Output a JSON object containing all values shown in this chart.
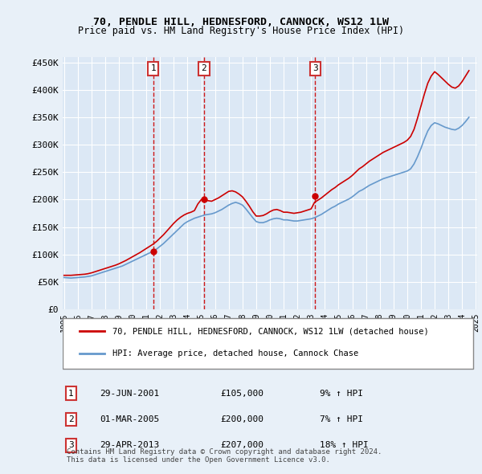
{
  "title_line1": "70, PENDLE HILL, HEDNESFORD, CANNOCK, WS12 1LW",
  "title_line2": "Price paid vs. HM Land Registry's House Price Index (HPI)",
  "xlabel": "",
  "ylabel": "",
  "ylim": [
    0,
    460000
  ],
  "yticks": [
    0,
    50000,
    100000,
    150000,
    200000,
    250000,
    300000,
    350000,
    400000,
    450000
  ],
  "ytick_labels": [
    "£0",
    "£50K",
    "£100K",
    "£150K",
    "£200K",
    "£250K",
    "£300K",
    "£350K",
    "£400K",
    "£450K"
  ],
  "x_start_year": 1995,
  "x_end_year": 2025,
  "xticks": [
    1995,
    1996,
    1997,
    1998,
    1999,
    2000,
    2001,
    2002,
    2003,
    2004,
    2005,
    2006,
    2007,
    2008,
    2009,
    2010,
    2011,
    2012,
    2013,
    2014,
    2015,
    2016,
    2017,
    2018,
    2019,
    2020,
    2021,
    2022,
    2023,
    2024,
    2025
  ],
  "background_color": "#e8f0f8",
  "plot_bg_color": "#dce8f5",
  "grid_color": "#ffffff",
  "red_line_color": "#cc0000",
  "blue_line_color": "#6699cc",
  "purchase_marker_color": "#cc0000",
  "vline_color": "#cc0000",
  "legend_box_color": "#cc3333",
  "legend1_label": "70, PENDLE HILL, HEDNESFORD, CANNOCK, WS12 1LW (detached house)",
  "legend2_label": "HPI: Average price, detached house, Cannock Chase",
  "purchases": [
    {
      "num": 1,
      "date": "29-JUN-2001",
      "price": 105000,
      "pct": "9%",
      "x": 2001.5
    },
    {
      "num": 2,
      "date": "01-MAR-2005",
      "price": 200000,
      "pct": "7%",
      "x": 2005.2
    },
    {
      "num": 3,
      "date": "29-APR-2013",
      "price": 207000,
      "pct": "18%",
      "x": 2013.3
    }
  ],
  "footer_line1": "Contains HM Land Registry data © Crown copyright and database right 2024.",
  "footer_line2": "This data is licensed under the Open Government Licence v3.0.",
  "hpi_data_x": [
    1995.0,
    1995.25,
    1995.5,
    1995.75,
    1996.0,
    1996.25,
    1996.5,
    1996.75,
    1997.0,
    1997.25,
    1997.5,
    1997.75,
    1998.0,
    1998.25,
    1998.5,
    1998.75,
    1999.0,
    1999.25,
    1999.5,
    1999.75,
    2000.0,
    2000.25,
    2000.5,
    2000.75,
    2001.0,
    2001.25,
    2001.5,
    2001.75,
    2002.0,
    2002.25,
    2002.5,
    2002.75,
    2003.0,
    2003.25,
    2003.5,
    2003.75,
    2004.0,
    2004.25,
    2004.5,
    2004.75,
    2005.0,
    2005.25,
    2005.5,
    2005.75,
    2006.0,
    2006.25,
    2006.5,
    2006.75,
    2007.0,
    2007.25,
    2007.5,
    2007.75,
    2008.0,
    2008.25,
    2008.5,
    2008.75,
    2009.0,
    2009.25,
    2009.5,
    2009.75,
    2010.0,
    2010.25,
    2010.5,
    2010.75,
    2011.0,
    2011.25,
    2011.5,
    2011.75,
    2012.0,
    2012.25,
    2012.5,
    2012.75,
    2013.0,
    2013.25,
    2013.5,
    2013.75,
    2014.0,
    2014.25,
    2014.5,
    2014.75,
    2015.0,
    2015.25,
    2015.5,
    2015.75,
    2016.0,
    2016.25,
    2016.5,
    2016.75,
    2017.0,
    2017.25,
    2017.5,
    2017.75,
    2018.0,
    2018.25,
    2018.5,
    2018.75,
    2019.0,
    2019.25,
    2019.5,
    2019.75,
    2020.0,
    2020.25,
    2020.5,
    2020.75,
    2021.0,
    2021.25,
    2021.5,
    2021.75,
    2022.0,
    2022.25,
    2022.5,
    2022.75,
    2023.0,
    2023.25,
    2023.5,
    2023.75,
    2024.0,
    2024.25,
    2024.5
  ],
  "hpi_data_y": [
    58000,
    57500,
    57000,
    57500,
    58000,
    58500,
    59000,
    60000,
    61000,
    63000,
    65000,
    67000,
    69000,
    71000,
    73000,
    75000,
    77000,
    79000,
    82000,
    85000,
    88000,
    91000,
    94000,
    97000,
    100000,
    103000,
    106000,
    110000,
    115000,
    120000,
    126000,
    132000,
    138000,
    144000,
    150000,
    156000,
    160000,
    163000,
    166000,
    168000,
    170000,
    172000,
    173000,
    174000,
    176000,
    179000,
    182000,
    186000,
    190000,
    193000,
    195000,
    193000,
    190000,
    183000,
    175000,
    167000,
    160000,
    158000,
    158000,
    160000,
    163000,
    165000,
    166000,
    165000,
    163000,
    163000,
    162000,
    161000,
    161000,
    162000,
    163000,
    164000,
    165000,
    167000,
    170000,
    173000,
    177000,
    181000,
    185000,
    188000,
    192000,
    195000,
    198000,
    201000,
    205000,
    210000,
    215000,
    218000,
    222000,
    226000,
    229000,
    232000,
    235000,
    238000,
    240000,
    242000,
    244000,
    246000,
    248000,
    250000,
    252000,
    256000,
    265000,
    278000,
    293000,
    310000,
    325000,
    335000,
    340000,
    338000,
    335000,
    332000,
    330000,
    328000,
    327000,
    330000,
    335000,
    342000,
    350000
  ],
  "red_data_x": [
    1995.0,
    1995.25,
    1995.5,
    1995.75,
    1996.0,
    1996.25,
    1996.5,
    1996.75,
    1997.0,
    1997.25,
    1997.5,
    1997.75,
    1998.0,
    1998.25,
    1998.5,
    1998.75,
    1999.0,
    1999.25,
    1999.5,
    1999.75,
    2000.0,
    2000.25,
    2000.5,
    2000.75,
    2001.0,
    2001.25,
    2001.5,
    2001.75,
    2002.0,
    2002.25,
    2002.5,
    2002.75,
    2003.0,
    2003.25,
    2003.5,
    2003.75,
    2004.0,
    2004.25,
    2004.5,
    2004.75,
    2005.0,
    2005.25,
    2005.5,
    2005.75,
    2006.0,
    2006.25,
    2006.5,
    2006.75,
    2007.0,
    2007.25,
    2007.5,
    2007.75,
    2008.0,
    2008.25,
    2008.5,
    2008.75,
    2009.0,
    2009.25,
    2009.5,
    2009.75,
    2010.0,
    2010.25,
    2010.5,
    2010.75,
    2011.0,
    2011.25,
    2011.5,
    2011.75,
    2012.0,
    2012.25,
    2012.5,
    2012.75,
    2013.0,
    2013.25,
    2013.5,
    2013.75,
    2014.0,
    2014.25,
    2014.5,
    2014.75,
    2015.0,
    2015.25,
    2015.5,
    2015.75,
    2016.0,
    2016.25,
    2016.5,
    2016.75,
    2017.0,
    2017.25,
    2017.5,
    2017.75,
    2018.0,
    2018.25,
    2018.5,
    2018.75,
    2019.0,
    2019.25,
    2019.5,
    2019.75,
    2020.0,
    2020.25,
    2020.5,
    2020.75,
    2021.0,
    2021.25,
    2021.5,
    2021.75,
    2022.0,
    2022.25,
    2022.5,
    2022.75,
    2023.0,
    2023.25,
    2023.5,
    2023.75,
    2024.0,
    2024.25,
    2024.5
  ],
  "red_data_y": [
    62000,
    62000,
    62000,
    62500,
    63000,
    63500,
    64000,
    65000,
    66500,
    68500,
    70500,
    72500,
    74500,
    76500,
    78500,
    80500,
    83000,
    86000,
    89000,
    92500,
    96000,
    99500,
    103000,
    107000,
    111000,
    115000,
    119000,
    124000,
    130000,
    136000,
    143000,
    150000,
    157000,
    163000,
    168000,
    172000,
    175000,
    177000,
    180000,
    192000,
    200000,
    200000,
    198000,
    197000,
    200000,
    203000,
    207000,
    211000,
    215000,
    216000,
    214000,
    210000,
    205000,
    197000,
    188000,
    178000,
    170000,
    170000,
    171000,
    174000,
    178000,
    181000,
    182000,
    180000,
    177000,
    177000,
    176000,
    175000,
    176000,
    177000,
    179000,
    181000,
    183000,
    195000,
    199000,
    203000,
    208000,
    213000,
    218000,
    222000,
    227000,
    231000,
    235000,
    239000,
    244000,
    250000,
    256000,
    260000,
    265000,
    270000,
    274000,
    278000,
    282000,
    286000,
    289000,
    292000,
    295000,
    298000,
    301000,
    304000,
    308000,
    315000,
    328000,
    348000,
    370000,
    392000,
    412000,
    425000,
    433000,
    428000,
    422000,
    416000,
    410000,
    405000,
    403000,
    407000,
    415000,
    425000,
    435000
  ]
}
